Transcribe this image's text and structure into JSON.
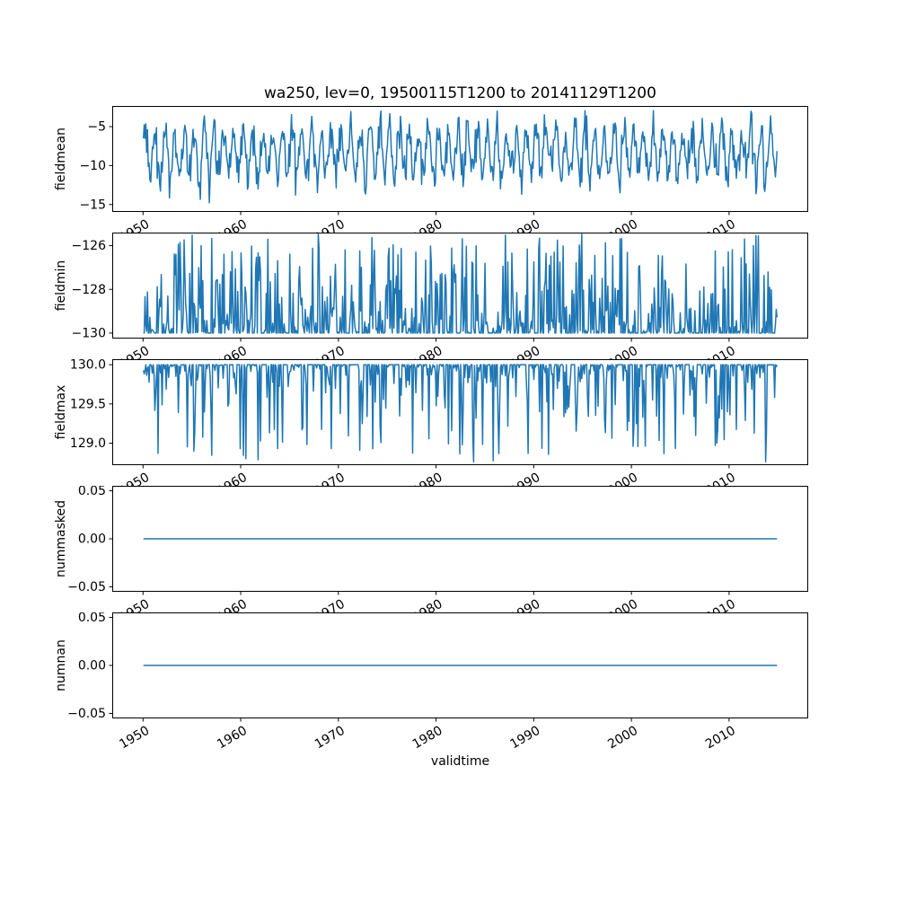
{
  "figure": {
    "title": "wa250, lev=0, 19500115T1200 to 20141129T1200",
    "xlabel": "validtime",
    "line_color": "#1f77b4",
    "background_color": "#ffffff",
    "axes_color": "#000000",
    "xlim": [
      1946.85,
      2018.1
    ],
    "xticks": [
      1950,
      1960,
      1970,
      1980,
      1990,
      2000,
      2010
    ],
    "xtick_labels": [
      "1950",
      "1960",
      "1970",
      "1980",
      "1990",
      "2000",
      "2010"
    ],
    "x_start": 1950.04,
    "x_end": 2014.91
  },
  "chart_data": [
    {
      "type": "line",
      "name": "fieldmean",
      "ylabel": "fieldmean",
      "ylim": [
        -15.95,
        -2.35
      ],
      "yticks": [
        -5,
        -10,
        -15
      ],
      "ytick_labels": [
        "−5",
        "−10",
        "−15"
      ],
      "description": "Noisy annual oscillation between about -15 and -3, centered near -8.5",
      "series": {
        "kind": "seasonal_noise",
        "n": 780,
        "x_start": 1950.04,
        "x_end": 2014.91,
        "base": -8.3,
        "amplitude": 2.9,
        "phase": 0.0,
        "sigma": 1.35,
        "clip_min": -15.3,
        "clip_max": -2.95,
        "seed": 3
      }
    },
    {
      "type": "line",
      "name": "fieldmin",
      "ylabel": "fieldmin",
      "ylim": [
        -130.25,
        -125.4
      ],
      "yticks": [
        -126,
        -128,
        -130
      ],
      "ytick_labels": [
        "−126",
        "−128",
        "−130"
      ],
      "description": "Baseline at -130 with frequent upward spikes, rarely reaching about -125.5",
      "series": {
        "kind": "baseline_spikes",
        "n": 780,
        "x_start": 1950.04,
        "x_end": 2014.91,
        "base": -130.0,
        "direction": 1,
        "amplitude": 4.55,
        "exponent": 2.8,
        "flat_prob": 0.3,
        "seed": 7
      }
    },
    {
      "type": "line",
      "name": "fieldmax",
      "ylabel": "fieldmax",
      "ylim": [
        128.72,
        130.07
      ],
      "yticks": [
        130.0,
        129.5,
        129.0
      ],
      "ytick_labels": [
        "130.0",
        "129.5",
        "129.0"
      ],
      "description": "Baseline at 130.0 with intermittent downward spikes to about 128.8",
      "series": {
        "kind": "baseline_spikes",
        "n": 780,
        "x_start": 1950.04,
        "x_end": 2014.91,
        "base": 130.0,
        "direction": -1,
        "amplitude": 1.25,
        "exponent": 4.5,
        "flat_prob": 0.25,
        "seed": 11
      }
    },
    {
      "type": "line",
      "name": "nummasked",
      "ylabel": "nummasked",
      "ylim": [
        -0.0552,
        0.0552
      ],
      "yticks": [
        0.05,
        0.0,
        -0.05
      ],
      "ytick_labels": [
        "0.05",
        "0.00",
        "−0.05"
      ],
      "description": "Constant zero line",
      "series": {
        "kind": "constant",
        "value": 0.0,
        "n": 2,
        "x_start": 1950.04,
        "x_end": 2014.91,
        "seed": 1
      }
    },
    {
      "type": "line",
      "name": "numnan",
      "ylabel": "numnan",
      "ylim": [
        -0.0552,
        0.0552
      ],
      "yticks": [
        0.05,
        0.0,
        -0.05
      ],
      "ytick_labels": [
        "0.05",
        "0.00",
        "−0.05"
      ],
      "description": "Constant zero line",
      "series": {
        "kind": "constant",
        "value": 0.0,
        "n": 2,
        "x_start": 1950.04,
        "x_end": 2014.91,
        "seed": 1
      }
    }
  ]
}
